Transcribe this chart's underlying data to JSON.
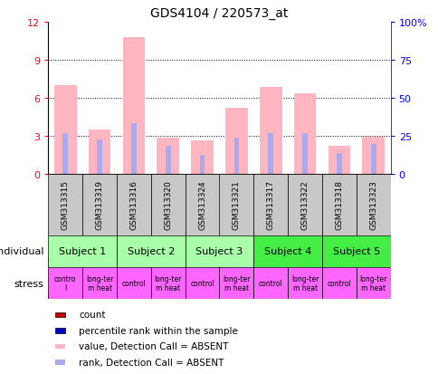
{
  "title": "GDS4104 / 220573_at",
  "samples": [
    "GSM313315",
    "GSM313319",
    "GSM313316",
    "GSM313320",
    "GSM313324",
    "GSM313321",
    "GSM313317",
    "GSM313322",
    "GSM313318",
    "GSM313323"
  ],
  "pink_bars": [
    7.0,
    3.5,
    10.8,
    2.8,
    2.6,
    5.2,
    6.8,
    6.3,
    2.2,
    2.9
  ],
  "blue_bars": [
    3.2,
    2.7,
    4.0,
    2.2,
    1.5,
    2.8,
    3.2,
    3.2,
    1.6,
    2.3
  ],
  "ylim_left": [
    0,
    12
  ],
  "ylim_right": [
    0,
    100
  ],
  "yticks_left": [
    0,
    3,
    6,
    9,
    12
  ],
  "yticks_right": [
    0,
    25,
    50,
    75,
    100
  ],
  "ytick_labels_right": [
    "0",
    "25",
    "50",
    "75",
    "100%"
  ],
  "subjects": [
    {
      "label": "Subject 1",
      "start": 0,
      "end": 2,
      "color": "#AAFFAA"
    },
    {
      "label": "Subject 2",
      "start": 2,
      "end": 4,
      "color": "#AAFFAA"
    },
    {
      "label": "Subject 3",
      "start": 4,
      "end": 6,
      "color": "#AAFFAA"
    },
    {
      "label": "Subject 4",
      "start": 6,
      "end": 8,
      "color": "#44EE44"
    },
    {
      "label": "Subject 5",
      "start": 8,
      "end": 10,
      "color": "#44EE44"
    }
  ],
  "stress_labels": [
    "contro\nl",
    "long-ter\nm heat",
    "control",
    "long-ter\nm heat",
    "control",
    "long-ter\nm heat",
    "control",
    "long-ter\nm heat",
    "control",
    "long-ter\nm heat"
  ],
  "stress_color": "#FF66FF",
  "gsm_bg_color": "#C8C8C8",
  "pink_color": "#FFB6C1",
  "blue_color": "#AAAAEE",
  "red_color": "#CC0000",
  "dark_blue_color": "#0000CC",
  "background_color": "#FFFFFF",
  "legend_items": [
    {
      "color": "#CC0000",
      "label": "count"
    },
    {
      "color": "#0000CC",
      "label": "percentile rank within the sample"
    },
    {
      "color": "#FFB6C1",
      "label": "value, Detection Call = ABSENT"
    },
    {
      "color": "#AAAAEE",
      "label": "rank, Detection Call = ABSENT"
    }
  ]
}
